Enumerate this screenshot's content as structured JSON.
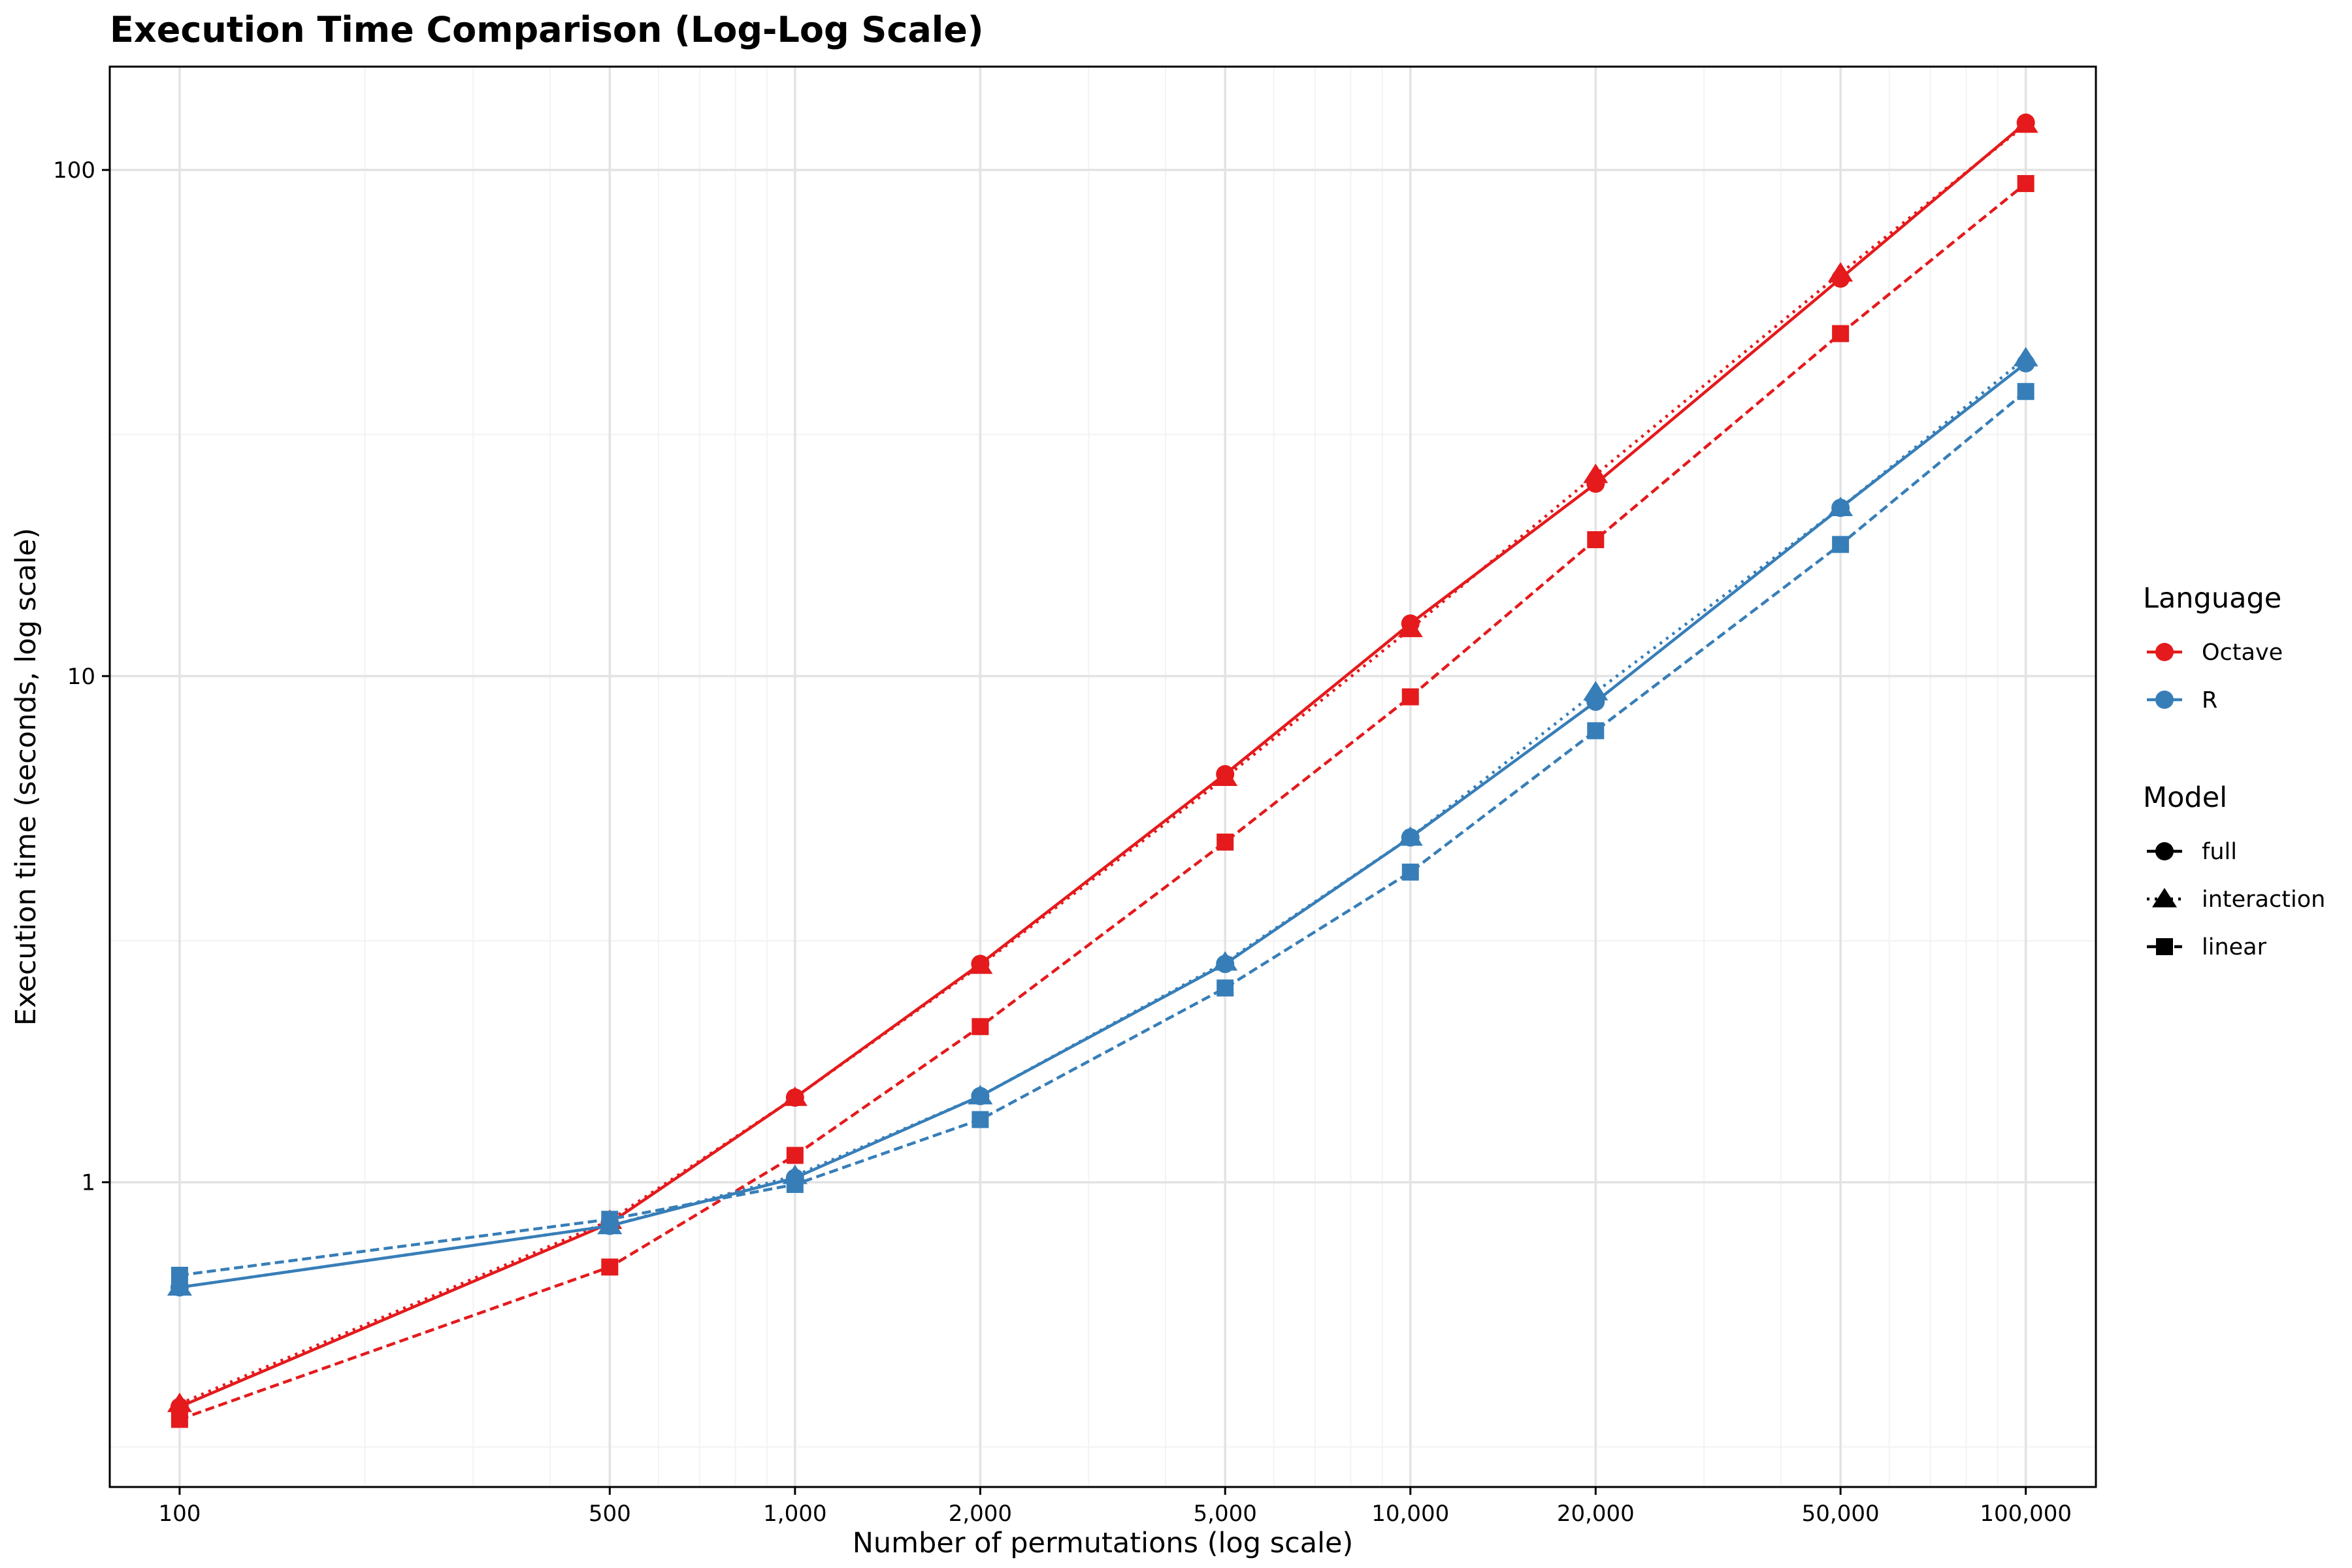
{
  "chart_data": {
    "type": "line",
    "title": "Execution Time Comparison (Log-Log Scale)",
    "xlabel": "Number of permutations (log scale)",
    "ylabel": "Execution time (seconds, log scale)",
    "x_scale": "log",
    "y_scale": "log",
    "xlim": [
      77,
      130000
    ],
    "ylim": [
      0.25,
      160
    ],
    "grid": true,
    "legend_placement": "right",
    "x_ticks": [
      {
        "value": 100,
        "label": "100"
      },
      {
        "value": 500,
        "label": "500"
      },
      {
        "value": 1000,
        "label": "1,000"
      },
      {
        "value": 2000,
        "label": "2,000"
      },
      {
        "value": 5000,
        "label": "5,000"
      },
      {
        "value": 10000,
        "label": "10,000"
      },
      {
        "value": 20000,
        "label": "20,000"
      },
      {
        "value": 50000,
        "label": "50,000"
      },
      {
        "value": 100000,
        "label": "100,000"
      }
    ],
    "y_ticks": [
      {
        "value": 1,
        "label": "1"
      },
      {
        "value": 10,
        "label": "10"
      },
      {
        "value": 100,
        "label": "100"
      }
    ],
    "x": [
      100,
      500,
      1000,
      2000,
      5000,
      10000,
      20000,
      50000,
      100000
    ],
    "series": [
      {
        "language": "Octave",
        "model": "full",
        "values": [
          0.36,
          0.83,
          1.47,
          2.7,
          6.4,
          12.7,
          24.0,
          61.0,
          124.0
        ]
      },
      {
        "language": "Octave",
        "model": "interaction",
        "values": [
          0.365,
          0.84,
          1.47,
          2.68,
          6.3,
          12.4,
          25.0,
          62.5,
          123.0
        ]
      },
      {
        "language": "Octave",
        "model": "linear",
        "values": [
          0.34,
          0.68,
          1.13,
          2.03,
          4.7,
          9.1,
          18.6,
          47.5,
          94.0
        ]
      },
      {
        "language": "R",
        "model": "full",
        "values": [
          0.62,
          0.82,
          1.02,
          1.48,
          2.7,
          4.8,
          8.9,
          21.5,
          41.5
        ]
      },
      {
        "language": "R",
        "model": "interaction",
        "values": [
          0.62,
          0.82,
          1.03,
          1.48,
          2.72,
          4.8,
          9.3,
          21.5,
          42.5
        ]
      },
      {
        "language": "R",
        "model": "linear",
        "values": [
          0.655,
          0.845,
          0.99,
          1.33,
          2.42,
          4.1,
          7.8,
          18.2,
          36.5
        ]
      }
    ],
    "legend": {
      "language_title": "Language",
      "language_entries": [
        {
          "label": "Octave",
          "color": "#e41a1c"
        },
        {
          "label": "R",
          "color": "#377eb8"
        }
      ],
      "model_title": "Model",
      "model_entries": [
        {
          "label": "full",
          "shape": "circle",
          "line": "solid"
        },
        {
          "label": "interaction",
          "shape": "triangle",
          "line": "dotted"
        },
        {
          "label": "linear",
          "shape": "square",
          "line": "dashed"
        }
      ]
    },
    "colors": {
      "Octave": "#e41a1c",
      "R": "#377eb8"
    }
  }
}
